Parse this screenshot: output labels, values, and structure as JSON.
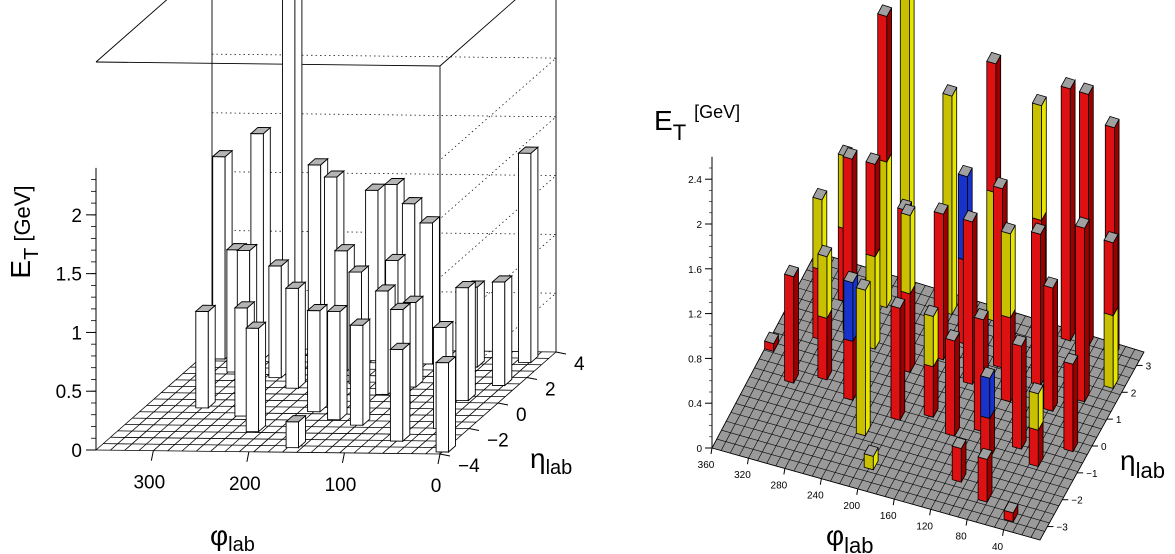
{
  "chart_data": [
    {
      "type": "bar3d",
      "z_title_main": "E",
      "z_title_sub": "T",
      "z_title_unit": "[GeV]",
      "phi_title_main": "φ",
      "phi_title_sub": "lab",
      "eta_title_main": "η",
      "eta_title_sub": "lab",
      "z_range": [
        0,
        3.3
      ],
      "z_ticks": [
        0,
        0.5,
        1,
        1.5,
        2
      ],
      "z_tick_labels": [
        "0",
        "0.5",
        "1",
        "1.5",
        "2"
      ],
      "phi_range": [
        0,
        360
      ],
      "phi_ticks": [
        0,
        100,
        200,
        300
      ],
      "phi_tick_labels": [
        "0",
        "100",
        "200",
        "300"
      ],
      "eta_range": [
        -4,
        4
      ],
      "eta_ticks": [
        -4,
        -2,
        0,
        2,
        4
      ],
      "eta_tick_labels": [
        "−4",
        "−2",
        "0",
        "2",
        "4"
      ],
      "grid": "lego floor grid, dotted back-wall lines",
      "colors": {
        "bar_front": "#ffffff",
        "bar_side": "#ffffff",
        "bar_top": "#b4b4b4",
        "floor": "#ffffff",
        "edge": "#000000"
      },
      "towers": [
        {
          "phi": 340,
          "eta": 3.4,
          "et": 1.72
        },
        {
          "phi": 300,
          "eta": 3.4,
          "et": 1.92
        },
        {
          "phi": 270,
          "eta": 3.6,
          "et": 3.05
        },
        {
          "phi": 240,
          "eta": 3.4,
          "et": 1.66
        },
        {
          "phi": 220,
          "eta": 3.2,
          "et": 1.58
        },
        {
          "phi": 180,
          "eta": 3.4,
          "et": 1.45
        },
        {
          "phi": 160,
          "eta": 3.4,
          "et": 1.5
        },
        {
          "phi": 140,
          "eta": 3.3,
          "et": 1.35
        },
        {
          "phi": 120,
          "eta": 3.2,
          "et": 1.2
        },
        {
          "phi": 20,
          "eta": 3.4,
          "et": 1.78
        },
        {
          "phi": 310,
          "eta": 2.4,
          "et": 1.04
        },
        {
          "phi": 290,
          "eta": 1.8,
          "et": 1.1
        },
        {
          "phi": 260,
          "eta": 2.0,
          "et": 0.95
        },
        {
          "phi": 230,
          "eta": 1.2,
          "et": 0.85
        },
        {
          "phi": 200,
          "eta": 2.6,
          "et": 1.02
        },
        {
          "phi": 170,
          "eta": 1.6,
          "et": 0.95
        },
        {
          "phi": 150,
          "eta": 2.8,
          "et": 0.92
        },
        {
          "phi": 130,
          "eta": 0.8,
          "et": 0.88
        },
        {
          "phi": 110,
          "eta": 1.4,
          "et": 0.72
        },
        {
          "phi": 70,
          "eta": 3.0,
          "et": 0.68
        },
        {
          "phi": 40,
          "eta": 0.4,
          "et": 0.96
        },
        {
          "phi": 20,
          "eta": 1.6,
          "et": 0.88
        },
        {
          "phi": 300,
          "eta": -0.4,
          "et": 0.82
        },
        {
          "phi": 250,
          "eta": -1.0,
          "et": 0.92
        },
        {
          "phi": 220,
          "eta": -2.2,
          "et": 0.88
        },
        {
          "phi": 180,
          "eta": -0.6,
          "et": 0.86
        },
        {
          "phi": 150,
          "eta": -1.2,
          "et": 0.92
        },
        {
          "phi": 120,
          "eta": -1.6,
          "et": 0.85
        },
        {
          "phi": 90,
          "eta": -0.8,
          "et": 0.9
        },
        {
          "phi": 60,
          "eta": -2.8,
          "et": 0.78
        },
        {
          "phi": 30,
          "eta": -1.8,
          "et": 0.86
        },
        {
          "phi": 160,
          "eta": -3.4,
          "et": 0.22
        },
        {
          "phi": 0,
          "eta": -3.6,
          "et": 0.76
        }
      ]
    },
    {
      "type": "bar3d",
      "z_title_main": "E",
      "z_title_sub": "T",
      "z_title_unit": "[GeV]",
      "phi_title_main": "φ",
      "phi_title_sub": "lab",
      "eta_title_main": "η",
      "eta_title_sub": "lab",
      "z_range": [
        0,
        2.6
      ],
      "z_ticks": [
        0,
        0.4,
        0.8,
        1.2,
        1.6,
        2,
        2.4
      ],
      "z_tick_labels": [
        "0",
        "0.4",
        "0.8",
        "1.2",
        "1.6",
        "2",
        "2.4"
      ],
      "phi_range": [
        0,
        360
      ],
      "phi_ticks": [
        40,
        80,
        120,
        160,
        200,
        240,
        280,
        320,
        360
      ],
      "phi_tick_labels": [
        "40",
        "80",
        "120",
        "160",
        "200",
        "240",
        "280",
        "320",
        "360"
      ],
      "eta_range": [
        -3.5,
        3.5
      ],
      "eta_ticks": [
        -3,
        -2,
        -1,
        0,
        1,
        2,
        3
      ],
      "eta_tick_labels": [
        "−3",
        "−2",
        "−1",
        "0",
        "1",
        "2",
        "3"
      ],
      "colors": {
        "floor": "#9a9a9a",
        "floor_line": "#000000",
        "top": "#a0a0a0",
        "red": "#dd1111",
        "red_side": "#9a0000",
        "yellow": "#c8c000",
        "yellow_side": "#e6e600",
        "blue": "#1733c9",
        "edge": "#000000"
      },
      "towers": [
        {
          "phi": 255,
          "eta": 3.2,
          "et": 3.3,
          "seg": [
            "yellow"
          ]
        },
        {
          "phi": 310,
          "eta": 2.4,
          "et": 1.3,
          "seg": [
            "red",
            "yellow"
          ]
        },
        {
          "phi": 270,
          "eta": 2.6,
          "et": 2.6,
          "seg": [
            "yellow",
            "red"
          ]
        },
        {
          "phi": 205,
          "eta": 3.0,
          "et": 1.95,
          "seg": [
            "yellow"
          ]
        },
        {
          "phi": 160,
          "eta": 3.2,
          "et": 2.3,
          "seg": [
            "yellow",
            "red"
          ]
        },
        {
          "phi": 110,
          "eta": 3.2,
          "et": 2.05,
          "seg": [
            "red",
            "yellow"
          ]
        },
        {
          "phi": 80,
          "eta": 3.3,
          "et": 2.25,
          "seg": [
            "red"
          ]
        },
        {
          "phi": 60,
          "eta": 3.3,
          "et": 2.25,
          "seg": [
            "red"
          ]
        },
        {
          "phi": 30,
          "eta": 3.2,
          "et": 2.05,
          "seg": [
            "red"
          ]
        },
        {
          "phi": 315,
          "eta": 1.0,
          "et": 1.25,
          "seg": [
            "red",
            "yellow"
          ]
        },
        {
          "phi": 290,
          "eta": 1.5,
          "et": 1.55,
          "seg": [
            "red"
          ]
        },
        {
          "phi": 260,
          "eta": 1.2,
          "et": 1.65,
          "seg": [
            "yellow",
            "red"
          ]
        },
        {
          "phi": 235,
          "eta": 1.8,
          "et": 1.15,
          "seg": [
            "red"
          ]
        },
        {
          "phi": 215,
          "eta": 0.8,
          "et": 1.4,
          "seg": [
            "red",
            "yellow"
          ]
        },
        {
          "phi": 190,
          "eta": 1.5,
          "et": 1.3,
          "seg": [
            "red"
          ]
        },
        {
          "phi": 175,
          "eta": 2.2,
          "et": 1.5,
          "seg": [
            "red",
            "blue"
          ]
        },
        {
          "phi": 150,
          "eta": 1.0,
          "et": 1.45,
          "seg": [
            "red"
          ]
        },
        {
          "phi": 130,
          "eta": 1.8,
          "et": 1.6,
          "seg": [
            "red"
          ]
        },
        {
          "phi": 105,
          "eta": 0.8,
          "et": 1.5,
          "seg": [
            "red",
            "yellow"
          ]
        },
        {
          "phi": 85,
          "eta": 1.6,
          "et": 1.35,
          "seg": [
            "red"
          ]
        },
        {
          "phi": 60,
          "eta": 0.9,
          "et": 1.1,
          "seg": [
            "red"
          ]
        },
        {
          "phi": 35,
          "eta": 1.5,
          "et": 1.55,
          "seg": [
            "red"
          ]
        },
        {
          "phi": 15,
          "eta": 2.2,
          "et": 1.3,
          "seg": [
            "yellow",
            "red"
          ]
        },
        {
          "phi": 320,
          "eta": -0.6,
          "et": 0.95,
          "seg": [
            "red"
          ]
        },
        {
          "phi": 290,
          "eta": -0.2,
          "et": 1.1,
          "seg": [
            "red",
            "yellow"
          ]
        },
        {
          "phi": 255,
          "eta": -0.6,
          "et": 1.05,
          "seg": [
            "red",
            "blue"
          ]
        },
        {
          "phi": 225,
          "eta": -1.6,
          "et": 1.3,
          "seg": [
            "yellow"
          ]
        },
        {
          "phi": 200,
          "eta": -0.8,
          "et": 1.0,
          "seg": [
            "red"
          ]
        },
        {
          "phi": 170,
          "eta": -0.4,
          "et": 0.9,
          "seg": [
            "red",
            "yellow"
          ]
        },
        {
          "phi": 140,
          "eta": -0.8,
          "et": 0.85,
          "seg": [
            "red"
          ]
        },
        {
          "phi": 115,
          "eta": -0.4,
          "et": 1.0,
          "seg": [
            "red"
          ]
        },
        {
          "phi": 95,
          "eta": -1.2,
          "et": 0.72,
          "seg": [
            "red",
            "blue"
          ]
        },
        {
          "phi": 70,
          "eta": -0.6,
          "et": 0.92,
          "seg": [
            "red"
          ]
        },
        {
          "phi": 45,
          "eta": -1.0,
          "et": 0.65,
          "seg": [
            "red",
            "yellow"
          ]
        },
        {
          "phi": 20,
          "eta": -0.2,
          "et": 0.78,
          "seg": [
            "red"
          ]
        },
        {
          "phi": 355,
          "eta": 0.2,
          "et": 0.07,
          "seg": [
            "red"
          ]
        },
        {
          "phi": 200,
          "eta": -2.6,
          "et": 0.12,
          "seg": [
            "yellow"
          ]
        },
        {
          "phi": 110,
          "eta": -2.2,
          "et": 0.3,
          "seg": [
            "red"
          ]
        },
        {
          "phi": 75,
          "eta": -2.6,
          "et": 0.38,
          "seg": [
            "red"
          ]
        },
        {
          "phi": 40,
          "eta": -3.0,
          "et": 0.08,
          "seg": [
            "red"
          ]
        }
      ]
    }
  ]
}
